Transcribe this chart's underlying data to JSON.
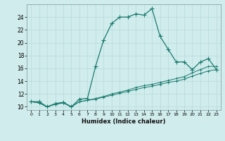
{
  "xlabel": "Humidex (Indice chaleur)",
  "bg_color": "#d0ecec",
  "line_color": "#1a7a6e",
  "x": [
    0,
    1,
    2,
    3,
    4,
    5,
    6,
    7,
    8,
    9,
    10,
    11,
    12,
    13,
    14,
    15,
    16,
    17,
    18,
    19,
    20,
    21,
    22,
    23
  ],
  "y_main": [
    10.8,
    10.8,
    10.0,
    10.5,
    10.7,
    10.0,
    11.2,
    11.3,
    16.3,
    20.4,
    23.0,
    24.0,
    24.0,
    24.5,
    24.3,
    25.3,
    21.0,
    19.0,
    17.0,
    17.0,
    15.8,
    17.0,
    17.5,
    15.8
  ],
  "y_line2": [
    10.8,
    10.6,
    10.0,
    10.4,
    10.6,
    10.0,
    10.8,
    11.0,
    11.3,
    11.6,
    12.0,
    12.3,
    12.6,
    13.0,
    13.3,
    13.5,
    13.8,
    14.1,
    14.4,
    14.7,
    15.3,
    15.8,
    16.3,
    16.3
  ],
  "y_line3": [
    10.8,
    10.6,
    10.0,
    10.4,
    10.6,
    10.0,
    10.8,
    11.0,
    11.2,
    11.5,
    11.8,
    12.1,
    12.4,
    12.7,
    13.0,
    13.2,
    13.5,
    13.8,
    14.0,
    14.3,
    14.8,
    15.2,
    15.6,
    15.8
  ],
  "ylim": [
    9.5,
    26.0
  ],
  "xlim": [
    -0.5,
    23.5
  ],
  "yticks": [
    10,
    12,
    14,
    16,
    18,
    20,
    22,
    24
  ],
  "xticks": [
    0,
    1,
    2,
    3,
    4,
    5,
    6,
    7,
    8,
    9,
    10,
    11,
    12,
    13,
    14,
    15,
    16,
    17,
    18,
    19,
    20,
    21,
    22,
    23
  ],
  "grid_color": "#b8dada",
  "markersize": 3
}
